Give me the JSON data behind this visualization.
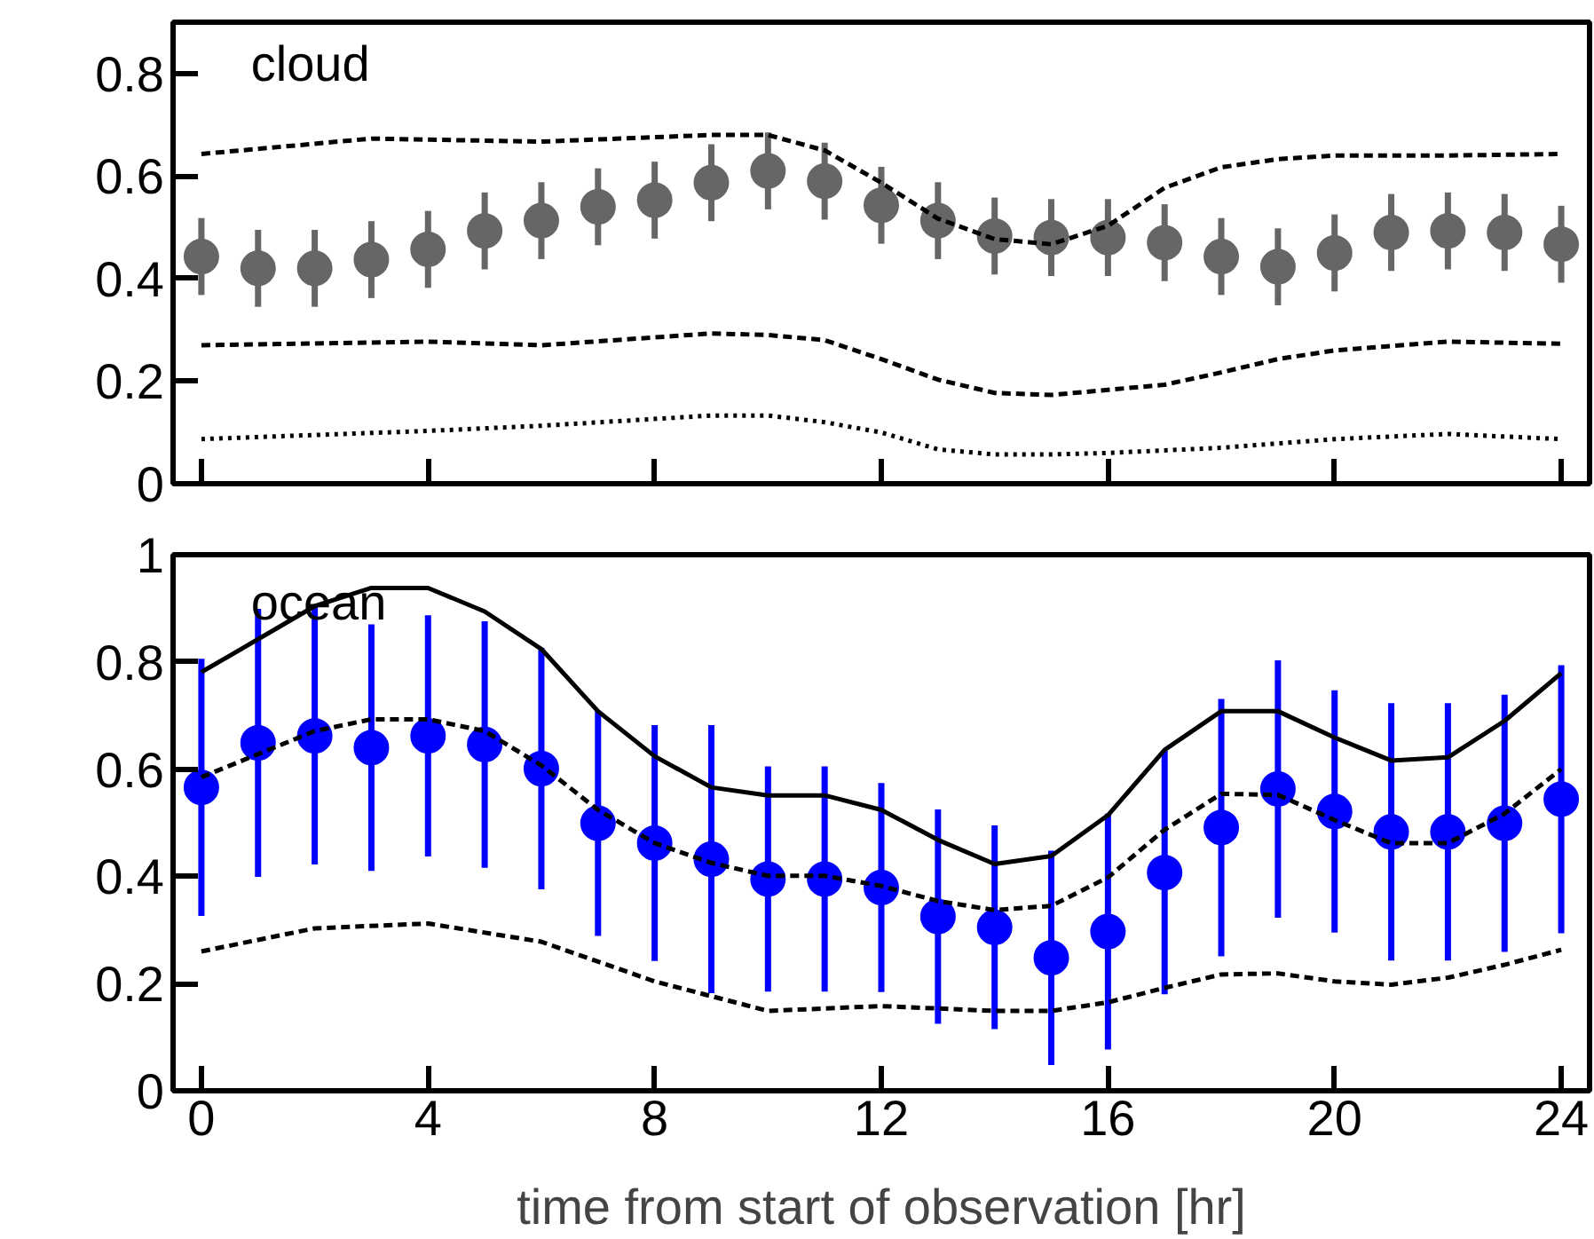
{
  "chart_data": [
    {
      "type": "scatter",
      "xlim": [
        -0.5,
        24.5
      ],
      "ylim": [
        0,
        0.9
      ],
      "xticks": [
        0,
        4,
        8,
        12,
        16,
        20,
        24
      ],
      "yticks": [
        0,
        0.2,
        0.4,
        0.6,
        0.8
      ],
      "tick_labels": "y",
      "annotations": [
        "cloud"
      ],
      "x": [
        0,
        1,
        2,
        3,
        4,
        5,
        6,
        7,
        8,
        9,
        10,
        11,
        12,
        13,
        14,
        15,
        16,
        17,
        18,
        19,
        20,
        21,
        22,
        23,
        24
      ],
      "series": [
        {
          "type": "line",
          "line_style": "dashed",
          "color": "#000000",
          "x": [
            0,
            3,
            6,
            9,
            10,
            11,
            12,
            13,
            14,
            15,
            16,
            17,
            18,
            19,
            20,
            22,
            24
          ],
          "values": [
            0.643,
            0.673,
            0.667,
            0.68,
            0.68,
            0.65,
            0.587,
            0.517,
            0.477,
            0.467,
            0.503,
            0.577,
            0.617,
            0.633,
            0.64,
            0.64,
            0.643
          ]
        },
        {
          "type": "line",
          "line_style": "dashed",
          "color": "#000000",
          "x": [
            0,
            4,
            6,
            9,
            10,
            11,
            12,
            13,
            14,
            15,
            16,
            17,
            18,
            19,
            20,
            22,
            24
          ],
          "values": [
            0.27,
            0.277,
            0.27,
            0.293,
            0.29,
            0.28,
            0.243,
            0.203,
            0.177,
            0.173,
            0.183,
            0.193,
            0.217,
            0.243,
            0.26,
            0.277,
            0.273
          ]
        },
        {
          "type": "line",
          "line_style": "dotted",
          "color": "#000000",
          "x": [
            0,
            4,
            6,
            9,
            10,
            11,
            12,
            13,
            14,
            15,
            16,
            18,
            20,
            22,
            24
          ],
          "values": [
            0.087,
            0.103,
            0.113,
            0.133,
            0.133,
            0.12,
            0.1,
            0.067,
            0.057,
            0.057,
            0.06,
            0.07,
            0.087,
            0.097,
            0.087
          ]
        },
        {
          "marker": "circle",
          "color": "#666666",
          "values": [
            0.443,
            0.42,
            0.42,
            0.437,
            0.457,
            0.493,
            0.513,
            0.54,
            0.553,
            0.587,
            0.61,
            0.59,
            0.543,
            0.513,
            0.483,
            0.48,
            0.48,
            0.47,
            0.443,
            0.423,
            0.45,
            0.49,
            0.493,
            0.49,
            0.467
          ],
          "errors": [
            0.075,
            0.075,
            0.075,
            0.075,
            0.075,
            0.075,
            0.075,
            0.075,
            0.075,
            0.075,
            0.075,
            0.075,
            0.075,
            0.075,
            0.075,
            0.075,
            0.075,
            0.075,
            0.075,
            0.075,
            0.075,
            0.075,
            0.075,
            0.075,
            0.075
          ]
        }
      ]
    },
    {
      "type": "scatter",
      "xlim": [
        -0.5,
        24.5
      ],
      "ylim": [
        0,
        1
      ],
      "xticks": [
        0,
        4,
        8,
        12,
        16,
        20,
        24
      ],
      "yticks": [
        0,
        0.2,
        0.4,
        0.6,
        0.8,
        1
      ],
      "xlabel": "time from start of observation [hr]",
      "annotations": [
        "ocean"
      ],
      "x": [
        0,
        1,
        2,
        3,
        4,
        5,
        6,
        7,
        8,
        9,
        10,
        11,
        12,
        13,
        14,
        15,
        16,
        17,
        18,
        19,
        20,
        21,
        22,
        23,
        24
      ],
      "series": [
        {
          "type": "line",
          "line_style": "solid",
          "color": "#000000",
          "x": [
            0,
            2,
            3,
            4,
            5,
            6,
            7,
            8,
            9,
            10,
            11,
            12,
            13,
            14,
            15,
            16,
            17,
            18,
            19,
            20,
            21,
            22,
            23,
            24
          ],
          "values": [
            0.781,
            0.904,
            0.938,
            0.938,
            0.894,
            0.824,
            0.708,
            0.624,
            0.566,
            0.551,
            0.551,
            0.524,
            0.468,
            0.423,
            0.438,
            0.514,
            0.636,
            0.708,
            0.708,
            0.659,
            0.616,
            0.622,
            0.69,
            0.779
          ]
        },
        {
          "type": "line",
          "line_style": "dashed",
          "color": "#000000",
          "x": [
            0,
            2,
            3,
            4,
            5,
            6,
            7,
            8,
            9,
            10,
            11,
            12,
            13,
            14,
            15,
            16,
            17,
            18,
            19,
            20,
            21,
            22,
            23,
            24
          ],
          "values": [
            0.585,
            0.671,
            0.693,
            0.693,
            0.671,
            0.607,
            0.524,
            0.462,
            0.425,
            0.401,
            0.401,
            0.382,
            0.354,
            0.337,
            0.345,
            0.398,
            0.487,
            0.554,
            0.552,
            0.505,
            0.462,
            0.462,
            0.517,
            0.6
          ]
        },
        {
          "type": "line",
          "line_style": "dashed",
          "color": "#000000",
          "x": [
            0,
            2,
            4,
            6,
            8,
            10,
            12,
            14,
            15,
            16,
            17,
            18,
            19,
            20,
            21,
            22,
            23,
            24
          ],
          "values": [
            0.26,
            0.303,
            0.312,
            0.278,
            0.204,
            0.149,
            0.158,
            0.149,
            0.149,
            0.165,
            0.192,
            0.217,
            0.219,
            0.204,
            0.198,
            0.211,
            0.235,
            0.263
          ]
        },
        {
          "marker": "circle",
          "color": "#0000ff",
          "values": [
            0.566,
            0.649,
            0.662,
            0.64,
            0.662,
            0.646,
            0.601,
            0.499,
            0.462,
            0.432,
            0.395,
            0.395,
            0.379,
            0.325,
            0.305,
            0.248,
            0.297,
            0.407,
            0.491,
            0.563,
            0.521,
            0.483,
            0.483,
            0.499,
            0.544
          ],
          "errors": [
            0.24,
            0.25,
            0.24,
            0.23,
            0.225,
            0.23,
            0.225,
            0.21,
            0.22,
            0.25,
            0.21,
            0.21,
            0.195,
            0.2,
            0.19,
            0.2,
            0.22,
            0.227,
            0.24,
            0.24,
            0.226,
            0.24,
            0.24,
            0.24,
            0.25
          ]
        }
      ]
    }
  ]
}
